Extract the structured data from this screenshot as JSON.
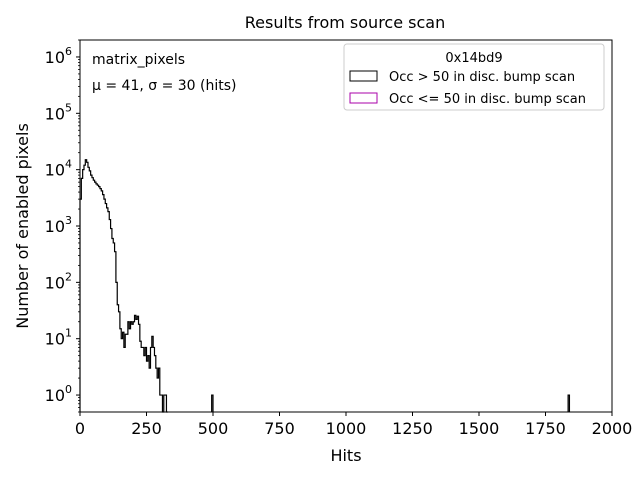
{
  "chart_data": {
    "type": "histogram",
    "title": "Results from source scan",
    "xlabel": "Hits",
    "ylabel": "Number of enabled pixels",
    "xlim": [
      0,
      2000
    ],
    "ylim": [
      0.5,
      2000000
    ],
    "yscale": "log",
    "grid": false,
    "x_ticks": [
      0,
      250,
      500,
      750,
      1000,
      1250,
      1500,
      1750,
      2000
    ],
    "x_tick_labels": [
      "0",
      "250",
      "500",
      "750",
      "1000",
      "1250",
      "1500",
      "1750",
      "2000"
    ],
    "y_ticks": [
      1,
      10,
      100,
      1000,
      10000,
      100000,
      1000000
    ],
    "y_tick_labels": [
      {
        "base": "10",
        "exp": "0"
      },
      {
        "base": "10",
        "exp": "1"
      },
      {
        "base": "10",
        "exp": "2"
      },
      {
        "base": "10",
        "exp": "3"
      },
      {
        "base": "10",
        "exp": "4"
      },
      {
        "base": "10",
        "exp": "5"
      },
      {
        "base": "10",
        "exp": "6"
      }
    ],
    "annotations": {
      "label": "matrix_pixels",
      "stats": "μ = 41, σ = 30 (hits)"
    },
    "legend": {
      "title": "0x14bd9",
      "placement": "top-right",
      "entries": [
        {
          "label": "Occ > 50 in disc. bump scan",
          "edge_color": "#000000"
        },
        {
          "label": "Occ <= 50 in disc. bump scan",
          "edge_color": "#aa00aa"
        }
      ]
    },
    "series": [
      {
        "label": "Occ > 50 in disc. bump scan",
        "color": "#000000",
        "bin_width": 5,
        "bins": [
          [
            0,
            3000
          ],
          [
            5,
            7000
          ],
          [
            10,
            10000
          ],
          [
            15,
            12000
          ],
          [
            20,
            15000
          ],
          [
            25,
            13500
          ],
          [
            30,
            11000
          ],
          [
            35,
            9500
          ],
          [
            40,
            8000
          ],
          [
            45,
            7200
          ],
          [
            50,
            6500
          ],
          [
            55,
            6000
          ],
          [
            60,
            5600
          ],
          [
            65,
            5300
          ],
          [
            70,
            5000
          ],
          [
            75,
            4600
          ],
          [
            80,
            4200
          ],
          [
            85,
            3600
          ],
          [
            90,
            3000
          ],
          [
            95,
            2500
          ],
          [
            100,
            2100
          ],
          [
            105,
            1800
          ],
          [
            110,
            1300
          ],
          [
            115,
            900
          ],
          [
            120,
            600
          ],
          [
            125,
            500
          ],
          [
            130,
            350
          ],
          [
            135,
            100
          ],
          [
            140,
            40
          ],
          [
            145,
            30
          ],
          [
            150,
            15
          ],
          [
            155,
            10
          ],
          [
            160,
            13
          ],
          [
            165,
            7
          ],
          [
            170,
            12
          ],
          [
            175,
            12
          ],
          [
            180,
            20
          ],
          [
            185,
            15
          ],
          [
            190,
            20
          ],
          [
            195,
            18
          ],
          [
            200,
            20
          ],
          [
            205,
            26
          ],
          [
            210,
            22
          ],
          [
            215,
            25
          ],
          [
            220,
            18
          ],
          [
            225,
            9
          ],
          [
            230,
            7
          ],
          [
            235,
            7
          ],
          [
            240,
            5
          ],
          [
            245,
            7
          ],
          [
            250,
            4
          ],
          [
            255,
            5
          ],
          [
            260,
            3
          ],
          [
            265,
            7
          ],
          [
            270,
            11
          ],
          [
            275,
            7
          ],
          [
            280,
            5
          ],
          [
            285,
            3
          ],
          [
            290,
            2
          ],
          [
            295,
            3
          ],
          [
            300,
            1
          ],
          [
            305,
            1
          ],
          [
            310,
            0.3
          ],
          [
            315,
            1
          ],
          [
            320,
            1
          ],
          [
            325,
            0.3
          ],
          [
            495,
            1
          ],
          [
            1835,
            1
          ]
        ]
      },
      {
        "label": "Occ <= 50 in disc. bump scan",
        "color": "#aa00aa",
        "bin_width": 5,
        "bins": []
      }
    ]
  }
}
